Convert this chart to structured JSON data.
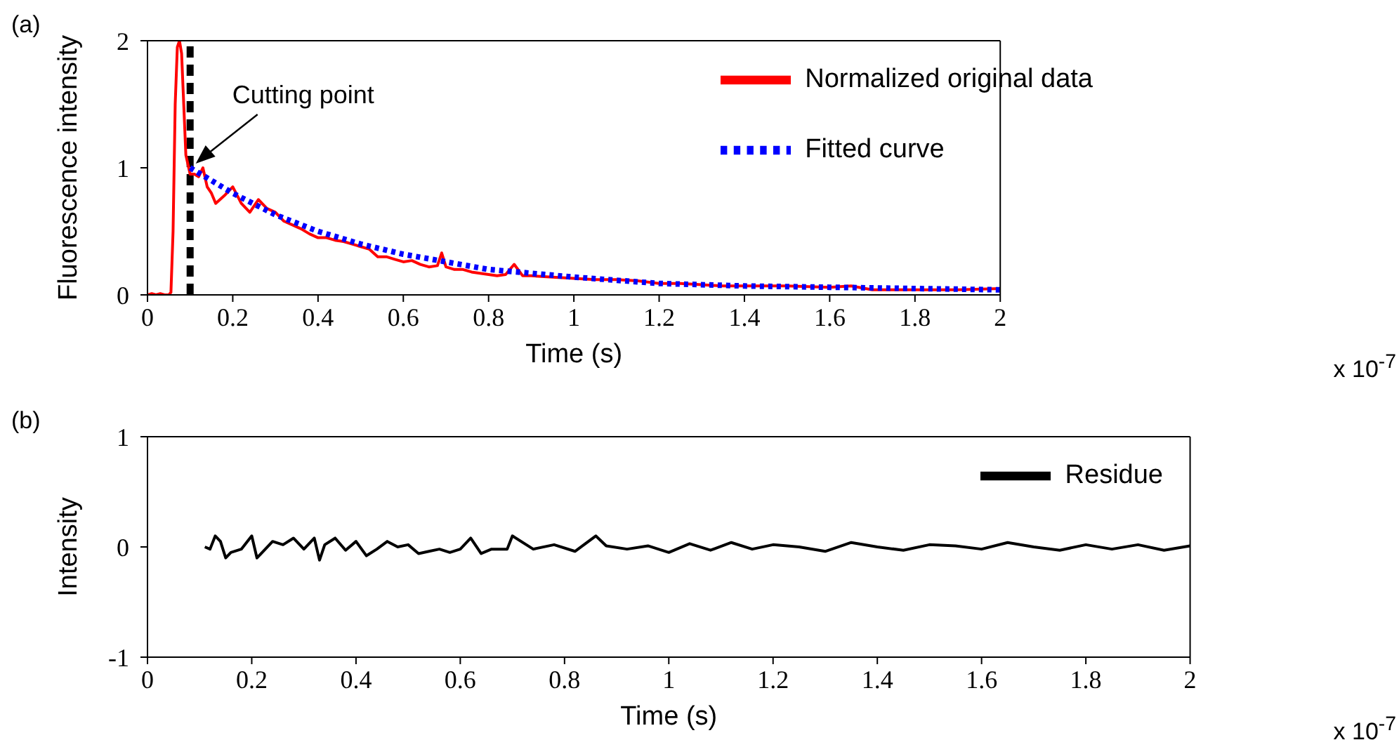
{
  "chart_data": [
    {
      "type": "line",
      "xlabel": "Time (s)",
      "ylabel": "Fluorescence intensity",
      "xlim": [
        0,
        2
      ],
      "ylim": [
        0,
        2
      ],
      "xticks": [
        0,
        0.2,
        0.4,
        0.6,
        0.8,
        1,
        1.2,
        1.4,
        1.6,
        1.8,
        2
      ],
      "yticks": [
        0,
        1,
        2
      ],
      "legend": "top right",
      "marker": "none",
      "annotations": [
        "(a)",
        "x 10$^{-7}$",
        {
          "text": "Cutting point",
          "x": 0.1,
          "y": 1
        }
      ],
      "ref_lines": [
        {
          "axis": "x",
          "value": 0.1,
          "color": "#000000",
          "line_style": "dashed"
        }
      ],
      "series": [
        {
          "name": "Normalized original data",
          "color": "#ff0000",
          "line_style": "solid",
          "x": [
            0,
            0.01,
            0.02,
            0.03,
            0.04,
            0.05,
            0.055,
            0.06,
            0.065,
            0.07,
            0.075,
            0.08,
            0.085,
            0.09,
            0.1,
            0.11,
            0.12,
            0.13,
            0.14,
            0.15,
            0.16,
            0.18,
            0.2,
            0.22,
            0.24,
            0.26,
            0.28,
            0.3,
            0.32,
            0.34,
            0.36,
            0.38,
            0.4,
            0.42,
            0.44,
            0.46,
            0.48,
            0.5,
            0.52,
            0.54,
            0.56,
            0.58,
            0.6,
            0.62,
            0.64,
            0.66,
            0.68,
            0.69,
            0.7,
            0.72,
            0.74,
            0.76,
            0.78,
            0.8,
            0.82,
            0.84,
            0.86,
            0.88,
            0.9,
            0.95,
            1,
            1.05,
            1.1,
            1.15,
            1.2,
            1.25,
            1.3,
            1.35,
            1.4,
            1.5,
            1.6,
            1.65,
            1.7,
            1.8,
            1.9,
            2
          ],
          "values": [
            0,
            0.01,
            0,
            0.01,
            0,
            0,
            0.02,
            0.5,
            1.5,
            1.95,
            2,
            1.9,
            1.5,
            1.1,
            0.95,
            0.95,
            0.93,
            1,
            0.85,
            0.8,
            0.72,
            0.78,
            0.85,
            0.72,
            0.65,
            0.75,
            0.68,
            0.65,
            0.58,
            0.55,
            0.52,
            0.48,
            0.45,
            0.45,
            0.43,
            0.42,
            0.4,
            0.38,
            0.36,
            0.3,
            0.3,
            0.28,
            0.26,
            0.27,
            0.24,
            0.22,
            0.23,
            0.33,
            0.22,
            0.2,
            0.2,
            0.18,
            0.17,
            0.16,
            0.15,
            0.16,
            0.24,
            0.15,
            0.15,
            0.14,
            0.13,
            0.12,
            0.12,
            0.11,
            0.09,
            0.09,
            0.08,
            0.07,
            0.07,
            0.07,
            0.06,
            0.07,
            0.04,
            0.04,
            0.04,
            0.05
          ]
        },
        {
          "name": "Fitted curve",
          "color": "#0000ff",
          "line_style": "dotted",
          "x": [
            0.1,
            0.2,
            0.3,
            0.4,
            0.5,
            0.6,
            0.7,
            0.8,
            0.9,
            1,
            1.2,
            1.4,
            1.6,
            1.8,
            2
          ],
          "values": [
            1,
            0.8,
            0.63,
            0.5,
            0.4,
            0.32,
            0.26,
            0.2,
            0.17,
            0.14,
            0.09,
            0.07,
            0.06,
            0.05,
            0.04
          ]
        }
      ]
    },
    {
      "type": "line",
      "xlabel": "Time (s)",
      "ylabel": "Intensity",
      "xlim": [
        0,
        2
      ],
      "ylim": [
        -1,
        1
      ],
      "xticks": [
        0,
        0.2,
        0.4,
        0.6,
        0.8,
        1,
        1.2,
        1.4,
        1.6,
        1.8,
        2
      ],
      "yticks": [
        -1,
        0,
        1
      ],
      "legend": "top right",
      "marker": "none",
      "annotations": [
        "(b)",
        "x 10$^{-7}$"
      ],
      "series": [
        {
          "name": "Residue",
          "color": "#000000",
          "line_style": "solid",
          "x": [
            0.11,
            0.12,
            0.13,
            0.14,
            0.15,
            0.16,
            0.18,
            0.2,
            0.21,
            0.22,
            0.24,
            0.26,
            0.28,
            0.3,
            0.32,
            0.33,
            0.34,
            0.36,
            0.38,
            0.4,
            0.42,
            0.44,
            0.46,
            0.48,
            0.5,
            0.52,
            0.54,
            0.56,
            0.58,
            0.6,
            0.62,
            0.64,
            0.66,
            0.69,
            0.7,
            0.74,
            0.78,
            0.82,
            0.86,
            0.88,
            0.92,
            0.96,
            1,
            1.04,
            1.08,
            1.12,
            1.16,
            1.2,
            1.25,
            1.3,
            1.35,
            1.4,
            1.45,
            1.5,
            1.55,
            1.6,
            1.65,
            1.7,
            1.75,
            1.8,
            1.85,
            1.9,
            1.95,
            2
          ],
          "values": [
            0,
            -0.02,
            0.1,
            0.05,
            -0.1,
            -0.05,
            -0.02,
            0.1,
            -0.1,
            -0.05,
            0.05,
            0.02,
            0.08,
            -0.02,
            0.08,
            -0.12,
            0.02,
            0.08,
            -0.03,
            0.05,
            -0.08,
            -0.02,
            0.05,
            0,
            0.02,
            -0.06,
            -0.04,
            -0.02,
            -0.05,
            -0.02,
            0.08,
            -0.06,
            -0.02,
            -0.02,
            0.1,
            -0.02,
            0.02,
            -0.04,
            0.1,
            0.01,
            -0.02,
            0.01,
            -0.05,
            0.03,
            -0.03,
            0.04,
            -0.02,
            0.02,
            0,
            -0.04,
            0.04,
            0,
            -0.03,
            0.02,
            0.01,
            -0.02,
            0.04,
            0,
            -0.03,
            0.02,
            -0.02,
            0.02,
            -0.03,
            0.01
          ]
        }
      ]
    }
  ]
}
